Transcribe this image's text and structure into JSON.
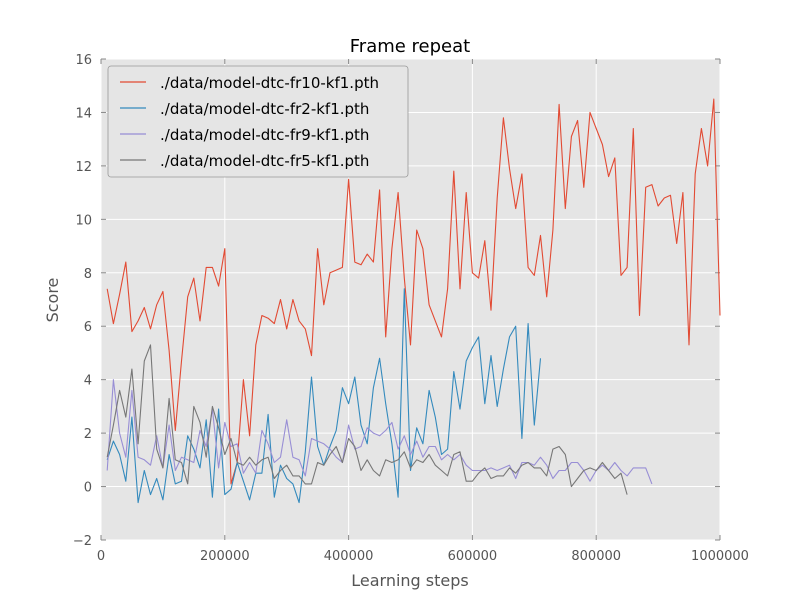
{
  "chart_data": {
    "type": "line",
    "title": "Frame repeat",
    "xlabel": "Learning steps",
    "ylabel": "Score",
    "xlim": [
      0,
      1000000
    ],
    "ylim": [
      -2,
      16
    ],
    "x_ticks": [
      0,
      200000,
      400000,
      600000,
      800000,
      1000000
    ],
    "x_tick_labels": [
      "0",
      "200000",
      "400000",
      "600000",
      "800000",
      "1000000"
    ],
    "y_ticks": [
      -2,
      0,
      2,
      4,
      6,
      8,
      10,
      12,
      14,
      16
    ],
    "y_tick_labels": [
      "−2",
      "0",
      "2",
      "4",
      "6",
      "8",
      "10",
      "12",
      "14",
      "16"
    ],
    "grid": true,
    "legend_position": "top-left",
    "series": [
      {
        "name": "./data/model-dtc-fr10-kf1.pth",
        "color": "#e24a33",
        "x": [
          10000,
          20000,
          30000,
          40000,
          50000,
          60000,
          70000,
          80000,
          90000,
          100000,
          110000,
          120000,
          130000,
          140000,
          150000,
          160000,
          170000,
          180000,
          190000,
          200000,
          210000,
          220000,
          230000,
          240000,
          250000,
          260000,
          270000,
          280000,
          290000,
          300000,
          310000,
          320000,
          330000,
          340000,
          350000,
          360000,
          370000,
          380000,
          390000,
          400000,
          410000,
          420000,
          430000,
          440000,
          450000,
          460000,
          470000,
          480000,
          490000,
          500000,
          510000,
          520000,
          530000,
          540000,
          550000,
          560000,
          570000,
          580000,
          590000,
          600000,
          610000,
          620000,
          630000,
          640000,
          650000,
          660000,
          670000,
          680000,
          690000,
          700000,
          710000,
          720000,
          730000,
          740000,
          750000,
          760000,
          770000,
          780000,
          790000,
          800000,
          810000,
          820000,
          830000,
          840000,
          850000,
          860000,
          870000,
          880000,
          890000,
          900000,
          910000,
          920000,
          930000,
          940000,
          950000,
          960000,
          970000,
          980000,
          990000,
          1000000
        ],
        "y": [
          7.4,
          6.1,
          7.2,
          8.4,
          5.8,
          6.2,
          6.7,
          5.9,
          6.8,
          7.3,
          5.1,
          2.1,
          4.7,
          7.1,
          7.8,
          6.2,
          8.2,
          8.2,
          7.5,
          8.9,
          0.1,
          0.9,
          4.0,
          1.9,
          5.3,
          6.4,
          6.3,
          6.1,
          7.0,
          5.9,
          7.0,
          6.2,
          5.9,
          4.9,
          8.9,
          6.8,
          8.0,
          8.1,
          8.2,
          11.5,
          8.4,
          8.3,
          8.7,
          8.4,
          11.1,
          5.6,
          8.9,
          11.0,
          7.8,
          5.3,
          9.6,
          8.9,
          6.8,
          6.2,
          5.6,
          7.4,
          11.8,
          7.4,
          11.0,
          8.0,
          7.8,
          9.2,
          6.6,
          10.8,
          13.8,
          11.9,
          10.4,
          11.7,
          8.2,
          7.9,
          9.4,
          7.1,
          9.6,
          14.3,
          10.4,
          13.1,
          13.7,
          11.2,
          14.0,
          13.4,
          12.8,
          11.6,
          12.3,
          7.9,
          8.2,
          13.4,
          6.4,
          11.2,
          11.3,
          10.5,
          10.8,
          10.9,
          9.1,
          11.0,
          5.3,
          11.7,
          13.4,
          12.0,
          14.5,
          6.4
        ]
      },
      {
        "name": "./data/model-dtc-fr2-kf1.pth",
        "color": "#348abd",
        "x": [
          10000,
          20000,
          30000,
          40000,
          50000,
          60000,
          70000,
          80000,
          90000,
          100000,
          110000,
          120000,
          130000,
          140000,
          150000,
          160000,
          170000,
          180000,
          190000,
          200000,
          210000,
          220000,
          230000,
          240000,
          250000,
          260000,
          270000,
          280000,
          290000,
          300000,
          310000,
          320000,
          330000,
          340000,
          350000,
          360000,
          370000,
          380000,
          390000,
          400000,
          410000,
          420000,
          430000,
          440000,
          450000,
          460000,
          470000,
          480000,
          490000,
          500000,
          510000,
          520000,
          530000,
          540000,
          550000,
          560000,
          570000,
          580000,
          590000,
          600000,
          610000,
          620000,
          630000,
          640000,
          650000,
          660000,
          670000,
          680000,
          690000,
          700000,
          710000
        ],
        "y": [
          1.0,
          1.7,
          1.2,
          0.2,
          2.6,
          -0.6,
          0.6,
          -0.3,
          0.3,
          -0.5,
          1.2,
          0.1,
          0.2,
          1.9,
          1.4,
          0.7,
          2.5,
          -0.4,
          2.9,
          -0.3,
          -0.1,
          0.9,
          0.2,
          -0.5,
          0.5,
          0.5,
          2.7,
          -0.4,
          0.8,
          0.3,
          0.1,
          -0.6,
          1.3,
          4.1,
          1.5,
          0.8,
          1.5,
          2.1,
          3.7,
          3.1,
          4.1,
          2.3,
          1.6,
          3.7,
          4.8,
          3.1,
          1.6,
          -0.4,
          7.4,
          0.6,
          2.2,
          1.6,
          3.6,
          2.6,
          1.2,
          1.4,
          4.3,
          2.9,
          4.7,
          5.2,
          5.6,
          3.1,
          4.9,
          3.0,
          4.4,
          5.6,
          6.0,
          1.8,
          6.1,
          2.3,
          4.8
        ]
      },
      {
        "name": "./data/model-dtc-fr9-kf1.pth",
        "color": "#988ed5",
        "x": [
          10000,
          20000,
          30000,
          40000,
          50000,
          60000,
          70000,
          80000,
          90000,
          100000,
          110000,
          120000,
          130000,
          140000,
          150000,
          160000,
          170000,
          180000,
          190000,
          200000,
          210000,
          220000,
          230000,
          240000,
          250000,
          260000,
          270000,
          280000,
          290000,
          300000,
          310000,
          320000,
          330000,
          340000,
          350000,
          360000,
          370000,
          380000,
          390000,
          400000,
          410000,
          420000,
          430000,
          440000,
          450000,
          460000,
          470000,
          480000,
          490000,
          500000,
          510000,
          520000,
          530000,
          540000,
          550000,
          560000,
          570000,
          580000,
          590000,
          600000,
          610000,
          620000,
          630000,
          640000,
          650000,
          660000,
          670000,
          680000,
          690000,
          700000,
          710000,
          720000,
          730000,
          740000,
          750000,
          760000,
          770000,
          780000,
          790000,
          800000,
          810000,
          820000,
          830000,
          840000,
          850000,
          860000,
          870000,
          880000,
          890000
        ],
        "y": [
          0.6,
          4.0,
          2.0,
          1.1,
          3.6,
          1.1,
          1.0,
          0.8,
          1.9,
          0.7,
          2.3,
          0.6,
          1.1,
          1.0,
          0.9,
          2.1,
          1.5,
          2.9,
          0.7,
          2.4,
          1.5,
          1.6,
          0.5,
          0.9,
          0.5,
          2.1,
          1.6,
          0.9,
          1.1,
          2.5,
          1.1,
          1.0,
          0.4,
          1.8,
          1.7,
          1.6,
          1.4,
          1.1,
          0.9,
          2.3,
          1.4,
          1.5,
          2.2,
          2.0,
          1.9,
          2.1,
          2.4,
          1.4,
          1.9,
          1.2,
          1.7,
          1.1,
          1.5,
          1.5,
          1.0,
          1.2,
          1.0,
          1.2,
          0.8,
          0.6,
          0.6,
          0.6,
          0.7,
          0.6,
          0.7,
          0.8,
          0.3,
          0.9,
          0.9,
          0.8,
          1.1,
          0.8,
          0.3,
          0.6,
          0.6,
          0.9,
          0.9,
          0.6,
          0.2,
          0.6,
          0.8,
          0.6,
          0.9,
          0.6,
          0.4,
          0.7,
          0.7,
          0.7,
          0.1
        ]
      },
      {
        "name": "./data/model-dtc-fr5-kf1.pth",
        "color": "#777777",
        "x": [
          10000,
          20000,
          30000,
          40000,
          50000,
          60000,
          70000,
          80000,
          90000,
          100000,
          110000,
          120000,
          130000,
          140000,
          150000,
          160000,
          170000,
          180000,
          190000,
          200000,
          210000,
          220000,
          230000,
          240000,
          250000,
          260000,
          270000,
          280000,
          290000,
          300000,
          310000,
          320000,
          330000,
          340000,
          350000,
          360000,
          370000,
          380000,
          390000,
          400000,
          410000,
          420000,
          430000,
          440000,
          450000,
          460000,
          470000,
          480000,
          490000,
          500000,
          510000,
          520000,
          530000,
          540000,
          550000,
          560000,
          570000,
          580000,
          590000,
          600000,
          610000,
          620000,
          630000,
          640000,
          650000,
          660000,
          670000,
          680000,
          690000,
          700000,
          710000,
          720000,
          730000,
          740000,
          750000,
          760000,
          770000,
          780000,
          790000,
          800000,
          810000,
          820000,
          830000,
          840000,
          850000
        ],
        "y": [
          1.1,
          2.3,
          3.6,
          2.6,
          4.4,
          1.6,
          4.7,
          5.3,
          1.4,
          0.7,
          3.3,
          1.0,
          0.9,
          0.1,
          3.0,
          2.4,
          1.1,
          3.0,
          2.2,
          1.2,
          1.8,
          0.9,
          0.8,
          1.1,
          0.8,
          1.0,
          1.1,
          0.3,
          0.6,
          0.8,
          0.4,
          0.4,
          0.1,
          0.1,
          0.9,
          0.8,
          1.2,
          1.5,
          0.9,
          1.8,
          1.5,
          0.6,
          1.0,
          0.6,
          0.4,
          1.0,
          0.9,
          1.0,
          1.3,
          0.7,
          1.0,
          0.9,
          1.2,
          0.8,
          0.6,
          0.4,
          1.2,
          1.3,
          0.2,
          0.2,
          0.5,
          0.7,
          0.3,
          0.4,
          0.4,
          0.7,
          0.5,
          0.8,
          0.9,
          0.7,
          0.7,
          0.4,
          1.4,
          1.5,
          1.2,
          0.0,
          0.3,
          0.6,
          0.7,
          0.6,
          0.9,
          0.6,
          0.3,
          0.5,
          -0.3
        ]
      }
    ]
  }
}
